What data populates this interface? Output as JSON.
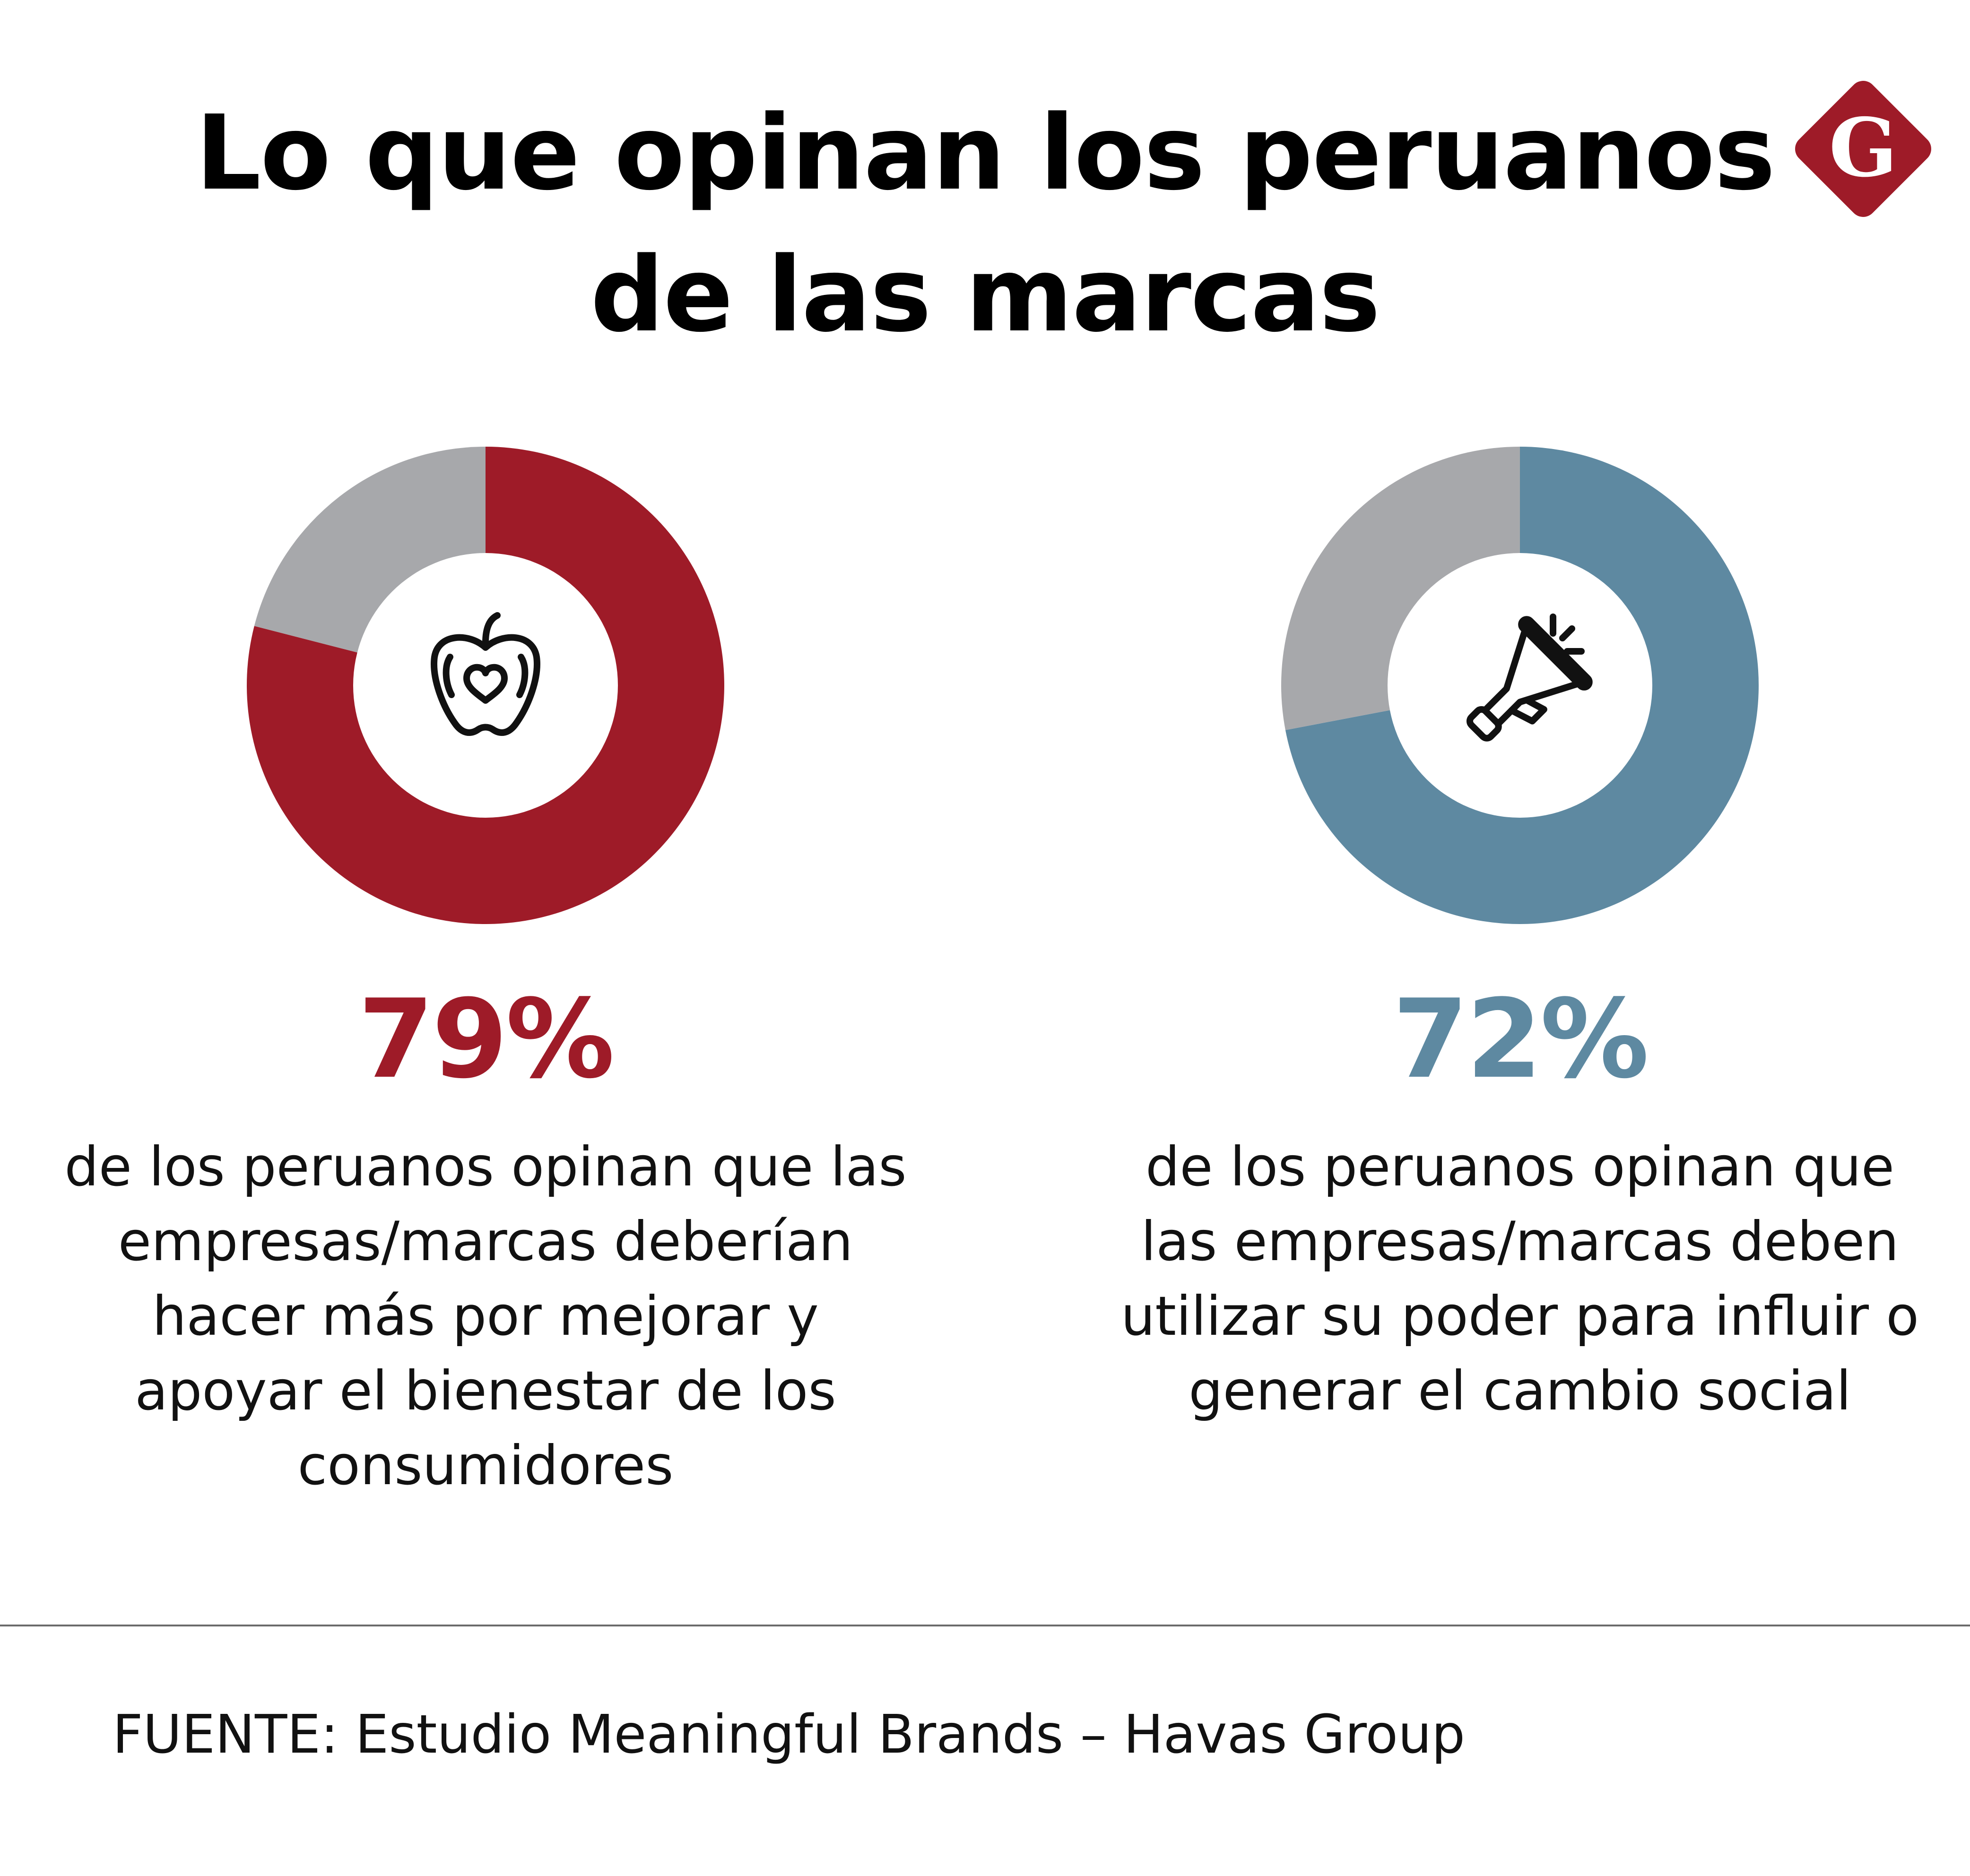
{
  "title": {
    "line1": "Lo que opinan los peruanos",
    "line2": "de las marcas"
  },
  "logo": {
    "letter": "G",
    "color": "#9e1b28",
    "icon": "g-diamond-logo-icon"
  },
  "colors": {
    "red": "#9e1b28",
    "blue": "#5e89a1",
    "gray": "#a7a8ab"
  },
  "chart_data": [
    {
      "type": "pie",
      "style": "donut",
      "labels": [
        "",
        ""
      ],
      "values": [
        79,
        21
      ],
      "colors": [
        "#9e1b28",
        "#a7a8ab"
      ],
      "highlight_label": "79%",
      "description_lines": [
        "de los peruanos opinan que las",
        "empresas/marcas deberían",
        "hacer más por mejorar y",
        "apoyar el bienestar de los",
        "consumidores"
      ],
      "icon": "apple-heart-icon"
    },
    {
      "type": "pie",
      "style": "donut",
      "labels": [
        "",
        ""
      ],
      "values": [
        72,
        28
      ],
      "colors": [
        "#5e89a1",
        "#a7a8ab"
      ],
      "highlight_label": "72%",
      "description_lines": [
        "de los peruanos opinan que",
        "las empresas/marcas deben",
        "utilizar su poder para influir o",
        "generar el cambio social"
      ],
      "icon": "megaphone-icon"
    }
  ],
  "source": "FUENTE: Estudio Meaningful Brands – Havas Group"
}
